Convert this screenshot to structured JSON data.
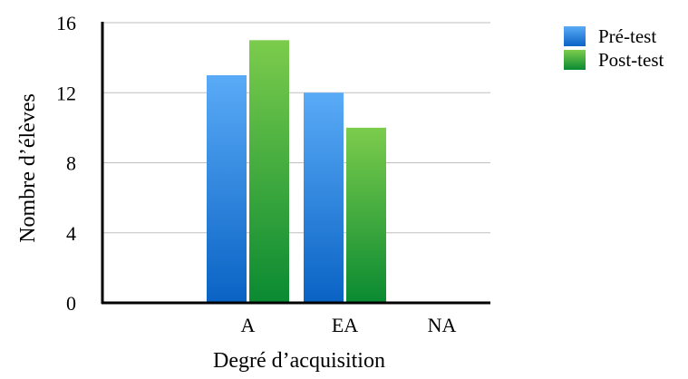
{
  "chart_data": {
    "type": "bar",
    "categories": [
      "",
      "A",
      "EA",
      "NA"
    ],
    "series": [
      {
        "name": "Pré-test",
        "values": [
          0,
          13,
          12,
          0
        ],
        "color_top": "#5aabf7",
        "color_bottom": "#0a63c4"
      },
      {
        "name": "Post-test",
        "values": [
          0,
          15,
          10,
          0
        ],
        "color_top": "#7ccc4c",
        "color_bottom": "#0a8a32"
      }
    ],
    "xlabel": "Degré d’acquisition",
    "ylabel": "Nombre d’élèves",
    "ylim": [
      0,
      16
    ],
    "yticks": [
      "0",
      "4",
      "8",
      "12",
      "16"
    ],
    "grid": true,
    "legend_position": "top-right",
    "grid_color": "#bfbfbf",
    "axis_color": "#000000"
  }
}
